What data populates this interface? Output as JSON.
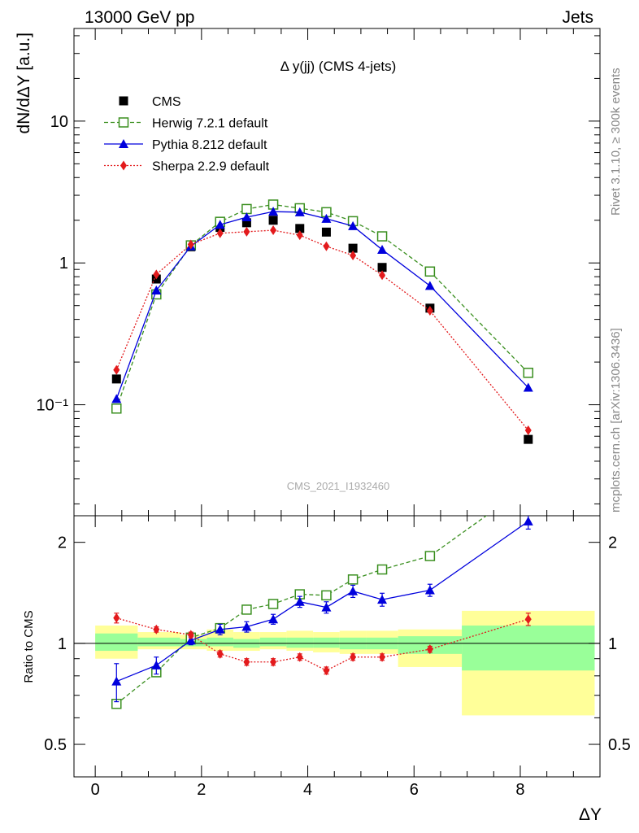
{
  "header": {
    "left": "13000 GeV pp",
    "right": "Jets"
  },
  "side_text": {
    "rivet": "Rivet 3.1.10, ≥ 300k events",
    "mcplots": "mcplots.cern.ch [arXiv:1306.3436]"
  },
  "watermark": "CMS_2021_I1932460",
  "colors": {
    "cms": "#000000",
    "herwig": "#3a8f1f",
    "pythia": "#0000dd",
    "sherpa": "#e31a1c",
    "band_yellow": "#ffff99",
    "band_green": "#99ff99"
  },
  "chart_data": [
    {
      "type": "scatter",
      "title": "Δ y(jj) (CMS 4-jets)",
      "ylabel": "dN/dΔY [a.u.]",
      "xlabel": "",
      "yscale": "log",
      "xlim": [
        -0.4,
        9.5
      ],
      "ylim": [
        0.0165,
        45
      ],
      "yticks": [
        {
          "value": 10,
          "label": "10"
        },
        {
          "value": 1,
          "label": "1"
        },
        {
          "value": 0.1,
          "label": "10⁻¹"
        }
      ],
      "legend": "top-left",
      "x": [
        0.4,
        1.15,
        1.8,
        2.35,
        2.85,
        3.35,
        3.85,
        4.35,
        4.85,
        5.4,
        6.3,
        8.15
      ],
      "series": [
        {
          "name": "CMS",
          "style": "data",
          "values": [
            0.152,
            0.77,
            1.3,
            1.78,
            1.92,
            2.0,
            1.75,
            1.65,
            1.27,
            0.93,
            0.48,
            0.057
          ]
        },
        {
          "name": "Herwig 7.2.1 default",
          "style": "herwig",
          "values": [
            0.094,
            0.6,
            1.33,
            1.95,
            2.4,
            2.58,
            2.43,
            2.28,
            1.97,
            1.54,
            0.87,
            0.168
          ]
        },
        {
          "name": "Pythia 8.212 default",
          "style": "pythia",
          "values": [
            0.11,
            0.64,
            1.31,
            1.86,
            2.1,
            2.3,
            2.28,
            2.05,
            1.82,
            1.24,
            0.69,
            0.132
          ]
        },
        {
          "name": "Sherpa 2.2.9 default",
          "style": "sherpa",
          "values": [
            0.176,
            0.83,
            1.35,
            1.62,
            1.66,
            1.7,
            1.57,
            1.31,
            1.13,
            0.82,
            0.46,
            0.066
          ]
        }
      ]
    },
    {
      "type": "line",
      "title": "",
      "ylabel": "Ratio to CMS",
      "xlabel": "ΔY",
      "yscale": "log",
      "xlim": [
        -0.4,
        9.5
      ],
      "ylim": [
        0.4,
        2.4
      ],
      "xticks": [
        0,
        2,
        4,
        6,
        8
      ],
      "yticks": [
        {
          "value": 2,
          "label": "2"
        },
        {
          "value": 1,
          "label": "1"
        },
        {
          "value": 0.5,
          "label": "0.5"
        }
      ],
      "bands": [
        {
          "x0": 0.0,
          "x1": 0.8,
          "y_lo": 0.9,
          "y_hi": 1.13,
          "g_lo": 0.95,
          "g_hi": 1.07
        },
        {
          "x0": 0.8,
          "x1": 1.6,
          "y_lo": 0.96,
          "y_hi": 1.08,
          "g_lo": 0.98,
          "g_hi": 1.04
        },
        {
          "x0": 1.6,
          "x1": 2.1,
          "y_lo": 0.96,
          "y_hi": 1.06,
          "g_lo": 0.98,
          "g_hi": 1.03
        },
        {
          "x0": 2.1,
          "x1": 2.6,
          "y_lo": 0.95,
          "y_hi": 1.1,
          "g_lo": 0.98,
          "g_hi": 1.04
        },
        {
          "x0": 2.6,
          "x1": 3.1,
          "y_lo": 0.95,
          "y_hi": 1.08,
          "g_lo": 0.97,
          "g_hi": 1.03
        },
        {
          "x0": 3.1,
          "x1": 3.6,
          "y_lo": 0.96,
          "y_hi": 1.08,
          "g_lo": 0.98,
          "g_hi": 1.04
        },
        {
          "x0": 3.6,
          "x1": 4.1,
          "y_lo": 0.95,
          "y_hi": 1.09,
          "g_lo": 0.97,
          "g_hi": 1.04
        },
        {
          "x0": 4.1,
          "x1": 4.6,
          "y_lo": 0.94,
          "y_hi": 1.08,
          "g_lo": 0.97,
          "g_hi": 1.04
        },
        {
          "x0": 4.6,
          "x1": 5.1,
          "y_lo": 0.93,
          "y_hi": 1.09,
          "g_lo": 0.96,
          "g_hi": 1.04
        },
        {
          "x0": 5.1,
          "x1": 5.7,
          "y_lo": 0.93,
          "y_hi": 1.09,
          "g_lo": 0.96,
          "g_hi": 1.04
        },
        {
          "x0": 5.7,
          "x1": 6.9,
          "y_lo": 0.85,
          "y_hi": 1.1,
          "g_lo": 0.93,
          "g_hi": 1.05
        },
        {
          "x0": 6.9,
          "x1": 9.4,
          "y_lo": 0.61,
          "y_hi": 1.25,
          "g_lo": 0.83,
          "g_hi": 1.13
        }
      ],
      "x": [
        0.4,
        1.15,
        1.8,
        2.35,
        2.85,
        3.35,
        3.85,
        4.35,
        4.85,
        5.4,
        6.3,
        8.15
      ],
      "series": [
        {
          "name": "Herwig 7.2.1 default",
          "style": "herwig",
          "values": [
            0.66,
            0.82,
            1.04,
            1.11,
            1.26,
            1.31,
            1.4,
            1.39,
            1.55,
            1.66,
            1.82,
            2.95
          ]
        },
        {
          "name": "Pythia 8.212 default",
          "style": "pythia",
          "values": [
            0.77,
            0.86,
            1.02,
            1.1,
            1.12,
            1.18,
            1.33,
            1.28,
            1.43,
            1.35,
            1.44,
            2.31
          ],
          "err": [
            0.1,
            0.05,
            0.03,
            0.04,
            0.04,
            0.04,
            0.05,
            0.05,
            0.06,
            0.06,
            0.06,
            0.12
          ]
        },
        {
          "name": "Sherpa 2.2.9 default",
          "style": "sherpa",
          "values": [
            1.19,
            1.1,
            1.06,
            0.93,
            0.88,
            0.88,
            0.91,
            0.83,
            0.91,
            0.91,
            0.96,
            1.18
          ],
          "err": [
            0.04,
            0.02,
            0.02,
            0.02,
            0.02,
            0.02,
            0.02,
            0.02,
            0.02,
            0.02,
            0.02,
            0.05
          ]
        }
      ]
    }
  ]
}
